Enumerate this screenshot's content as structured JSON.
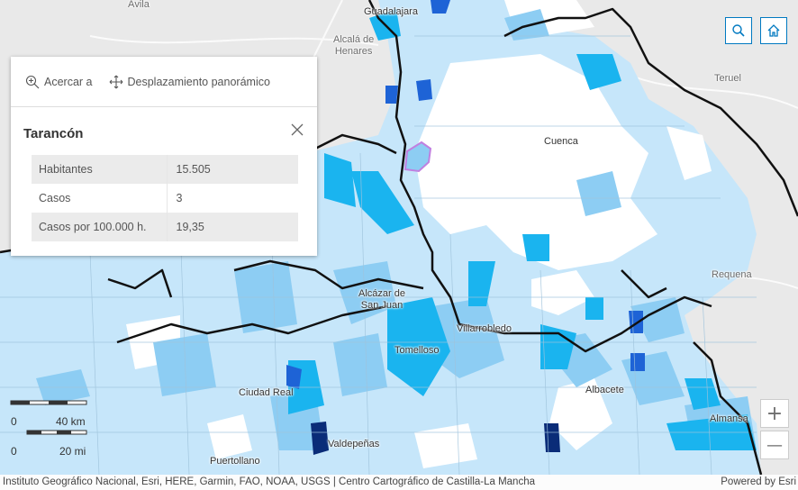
{
  "map": {
    "cities": [
      {
        "name": "Ávila",
        "grey": true
      },
      {
        "name": "Guadalajara",
        "grey": false
      },
      {
        "name": "Alcalá de\nHenares",
        "grey": true
      },
      {
        "name": "Teruel",
        "grey": true
      },
      {
        "name": "Cuenca",
        "grey": false
      },
      {
        "name": "Requena",
        "grey": true
      },
      {
        "name": "Alcázar de\nSan Juan",
        "grey": false
      },
      {
        "name": "Villarrobledo",
        "grey": false
      },
      {
        "name": "Tomelloso",
        "grey": false
      },
      {
        "name": "Ciudad Real",
        "grey": false
      },
      {
        "name": "Albacete",
        "grey": false
      },
      {
        "name": "Almansa",
        "grey": false
      },
      {
        "name": "Valdepeñas",
        "grey": false
      },
      {
        "name": "Puertollano",
        "grey": false
      }
    ],
    "colors": {
      "background": "#e9e9e9",
      "class_0": "#ffffff",
      "class_1": "#c6e6fa",
      "class_2": "#8dcdf3",
      "class_3": "#1ab4ef",
      "class_4": "#1e63d6",
      "class_5": "#0a2c78",
      "border": "#111111",
      "selection": "#c080e0"
    }
  },
  "toolbar": {
    "search_icon": "search-icon",
    "home_icon": "home-icon",
    "zoom_in": "+",
    "zoom_out": "—"
  },
  "popup": {
    "actions": {
      "zoom_to": "Acercar a",
      "pan": "Desplazamiento panorámico"
    },
    "title": "Tarancón",
    "rows": [
      {
        "label": "Habitantes",
        "value": "15.505"
      },
      {
        "label": "Casos",
        "value": "3"
      },
      {
        "label": "Casos por 100.000 h.",
        "value": "19,35"
      }
    ]
  },
  "scalebar": {
    "km_label": "40 km",
    "mi_label": "20 mi",
    "zero": "0"
  },
  "attribution": {
    "text": "Instituto Geográfico Nacional, Esri, HERE, Garmin, FAO, NOAA, USGS | Centro Cartográfico de Castilla-La Mancha",
    "powered": "Powered by Esri"
  }
}
